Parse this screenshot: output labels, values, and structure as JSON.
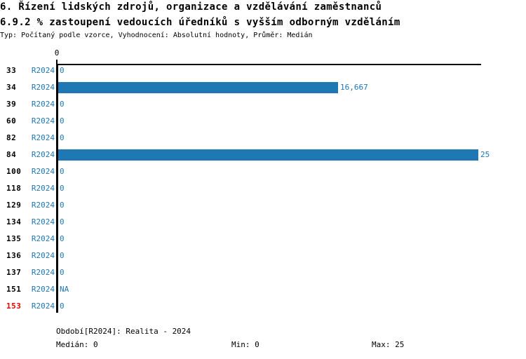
{
  "title": {
    "line1": "6. Řízení lidských zdrojů, organizace a vzdělávání zaměstnanců",
    "line2": "6.9.2 % zastoupení vedoucích úředníků s vyšším odborným vzděláním",
    "meta": "Typ: Počítaný podle vzorce, Vyhodnocení: Absolutní hodnoty, Průměr: Medián"
  },
  "chart_data": {
    "type": "bar",
    "orientation": "horizontal",
    "title": "6.9.2 % zastoupení vedoucích úředníků s vyšším odborným vzděláním",
    "categories": [
      "33",
      "34",
      "39",
      "60",
      "82",
      "84",
      "100",
      "118",
      "129",
      "134",
      "135",
      "136",
      "137",
      "151",
      "153"
    ],
    "series": [
      {
        "name": "R2024",
        "values": [
          0,
          16.667,
          0,
          0,
          0,
          25,
          0,
          0,
          0,
          0,
          0,
          0,
          0,
          null,
          0
        ],
        "value_labels": [
          "0",
          "16,667",
          "0",
          "0",
          "0",
          "25",
          "0",
          "0",
          "0",
          "0",
          "0",
          "0",
          "0",
          "NA",
          "0"
        ]
      }
    ],
    "highlighted_categories": [
      "153"
    ],
    "xlim": [
      0,
      25
    ],
    "x_ticks": [
      "0"
    ],
    "grid": false,
    "legend_position": "none",
    "xlabel": "",
    "ylabel": ""
  },
  "footer": {
    "period": "Období[R2024]: Realita - 2024",
    "median": "Medián: 0",
    "min": "Min: 0",
    "max": "Max: 25"
  },
  "colors": {
    "bar": "#1F77B4",
    "series_text": "#1F77B4",
    "value_text": "#1F77B4",
    "footer_text": "#17769B",
    "category_text": "#000000",
    "highlight_text": "#E60000",
    "axis": "#000000"
  }
}
